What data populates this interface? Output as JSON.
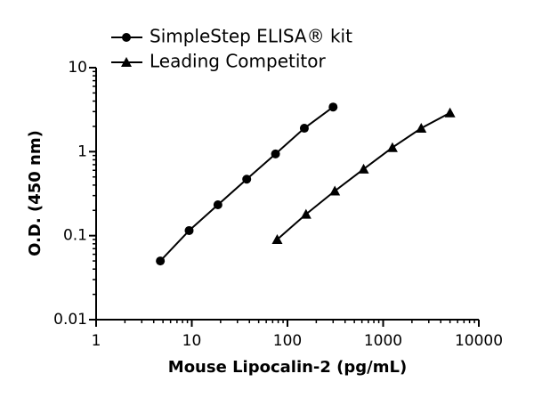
{
  "chart_data": {
    "type": "line",
    "xlabel": "Mouse Lipocalin-2 (pg/mL)",
    "ylabel": "O.D. (450 nm)",
    "xscale": "log",
    "yscale": "log",
    "xlim": [
      1,
      10000
    ],
    "xticks": [
      1,
      10,
      100,
      1000,
      10000
    ],
    "ylim": [
      0.01,
      10
    ],
    "yticks": [
      0.01,
      0.1,
      1,
      10
    ],
    "legend": "top",
    "series": [
      {
        "name": "SimpleStep ELISA® kit",
        "color": "#000000",
        "marker": "circle",
        "x": [
          4.69,
          9.38,
          18.75,
          37.5,
          75,
          150,
          300
        ],
        "values": [
          0.05,
          0.115,
          0.233,
          0.47,
          0.94,
          1.9,
          3.4
        ]
      },
      {
        "name": "Leading Competitor",
        "color": "#000000",
        "marker": "triangle",
        "x": [
          78.1,
          156.25,
          312.5,
          625,
          1250,
          2500,
          5000
        ],
        "values": [
          0.09,
          0.18,
          0.34,
          0.62,
          1.12,
          1.9,
          2.9
        ]
      }
    ]
  }
}
